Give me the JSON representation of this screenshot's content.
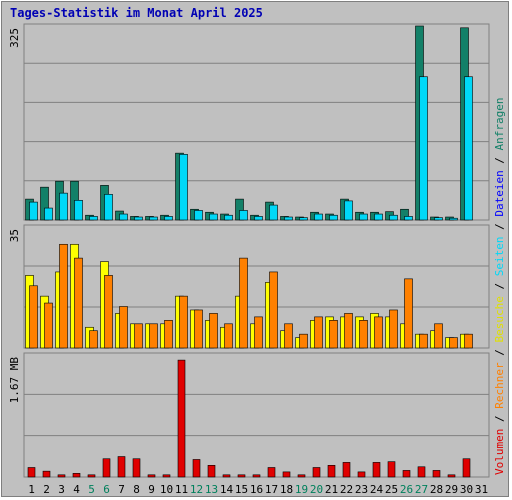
{
  "chart_data": {
    "title": "Tages-Statistik im Monat April 2025",
    "type": "bar",
    "categories": [
      "1",
      "2",
      "3",
      "4",
      "5",
      "6",
      "7",
      "8",
      "9",
      "10",
      "11",
      "12",
      "13",
      "14",
      "15",
      "16",
      "17",
      "18",
      "19",
      "20",
      "21",
      "22",
      "23",
      "24",
      "25",
      "26",
      "27",
      "28",
      "29",
      "30",
      "31"
    ],
    "weekend_days": [
      "5",
      "6",
      "12",
      "13",
      "19",
      "20",
      "26",
      "27"
    ],
    "panels": [
      {
        "name": "hits-files",
        "max_label": "325",
        "ymax": 325,
        "series": [
          {
            "name": "Anfragen",
            "color": "#138068",
            "values": [
              35,
              55,
              65,
              65,
              8,
              58,
              15,
              6,
              6,
              8,
              112,
              18,
              13,
              10,
              35,
              8,
              30,
              6,
              5,
              13,
              10,
              35,
              13,
              13,
              14,
              18,
              325,
              5,
              5,
              322,
              0
            ]
          },
          {
            "name": "Dateien",
            "color": "#00d8f8",
            "values": [
              30,
              20,
              45,
              33,
              6,
              43,
              10,
              5,
              5,
              6,
              110,
              16,
              10,
              8,
              16,
              6,
              25,
              5,
              4,
              10,
              8,
              32,
              10,
              10,
              8,
              6,
              240,
              4,
              3,
              240,
              0
            ]
          }
        ]
      },
      {
        "name": "visits-sites",
        "max_label": "35",
        "ymax": 35,
        "series": [
          {
            "name": "Besuche",
            "color": "#ffff00",
            "values": [
              21,
              15,
              22,
              30,
              6,
              25,
              10,
              7,
              7,
              7,
              15,
              11,
              8,
              6,
              15,
              7,
              19,
              5,
              3,
              8,
              9,
              9,
              9,
              10,
              9,
              7,
              4,
              5,
              3,
              4,
              0
            ]
          },
          {
            "name": "Rechner",
            "color": "#ff8000",
            "values": [
              18,
              13,
              30,
              26,
              5,
              21,
              12,
              7,
              7,
              8,
              15,
              11,
              10,
              7,
              26,
              9,
              22,
              7,
              4,
              9,
              8,
              10,
              8,
              9,
              11,
              20,
              4,
              7,
              3,
              4,
              0
            ]
          }
        ]
      },
      {
        "name": "volume",
        "max_label": "1.67 MB",
        "ymax": 1.67,
        "series": [
          {
            "name": "Volumen",
            "color": "#e00000",
            "values": [
              0.13,
              0.08,
              0.03,
              0.05,
              0.03,
              0.25,
              0.28,
              0.25,
              0.03,
              0.03,
              1.6,
              0.24,
              0.16,
              0.03,
              0.03,
              0.03,
              0.13,
              0.07,
              0.03,
              0.13,
              0.16,
              0.2,
              0.07,
              0.2,
              0.21,
              0.09,
              0.14,
              0.09,
              0.03,
              0.25,
              0
            ]
          }
        ]
      }
    ],
    "legend_labels": [
      "Volumen",
      "Rechner",
      "Besuche",
      "Seiten",
      "Dateien",
      "Anfragen"
    ],
    "legend_colors": [
      "#e00000",
      "#ff8000",
      "#e0e000",
      "#00d8f8",
      "#0000ff",
      "#138068"
    ],
    "label_colors": {
      "weekday": "#000000",
      "weekend": "#00805c"
    }
  }
}
